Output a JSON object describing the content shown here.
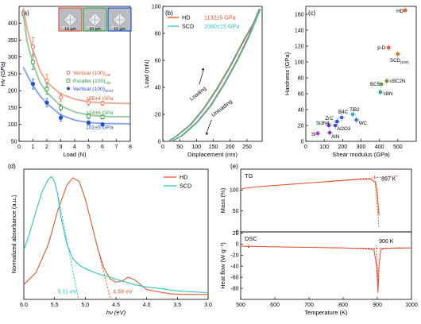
{
  "colors": {
    "hd": "#e4572e",
    "scd": "#2cc7b8",
    "vertical": "#e4572e",
    "parallel": "#2f9e44",
    "scd_vertical": "#1d4fd8",
    "axis": "#000000",
    "dashed": "#c0392b"
  },
  "chart_data": [
    {
      "panel": "(a)",
      "type": "scatter",
      "xlabel": "Load (N)",
      "ylabel": "Hv (GPa)",
      "xlim": [
        0,
        8
      ],
      "ylim": [
        50,
        450
      ],
      "xticks": [
        0,
        1,
        2,
        3,
        4,
        5,
        6,
        7,
        8
      ],
      "yticks": [
        50,
        100,
        150,
        200,
        250,
        300,
        350,
        400
      ],
      "series": [
        {
          "name": "Vertical (100)",
          "sub": "HD",
          "marker": "open-circle",
          "color": "#e4572e",
          "x": [
            1,
            2,
            3,
            5,
            6
          ],
          "y": [
            330,
            230,
            180,
            165,
            163
          ],
          "err": [
            28,
            18,
            12,
            8,
            6
          ]
        },
        {
          "name": "Parallel (100)",
          "sub": "HD",
          "marker": "open-square",
          "color": "#2f9e44",
          "x": [
            1,
            2,
            3,
            5,
            6
          ],
          "y": [
            285,
            205,
            150,
            125,
            122
          ],
          "err": [
            22,
            16,
            10,
            8,
            6
          ]
        },
        {
          "name": "Vertical (100)",
          "sub": "SCD",
          "marker": "filled-circle",
          "color": "#1d4fd8",
          "x": [
            1,
            2,
            3,
            5,
            6
          ],
          "y": [
            220,
            165,
            120,
            105,
            100
          ],
          "err": [
            15,
            12,
            10,
            6,
            5
          ]
        }
      ],
      "fits": [
        {
          "color": "#e4572e",
          "points": [
            [
              0.3,
              445
            ],
            [
              0.6,
              380
            ],
            [
              1,
              320
            ],
            [
              1.5,
              260
            ],
            [
              2,
              225
            ],
            [
              3,
              190
            ],
            [
              4,
              175
            ],
            [
              5,
              167
            ],
            [
              6,
              164
            ],
            [
              8,
              162
            ]
          ]
        },
        {
          "color": "#2f9e44",
          "points": [
            [
              0.3,
              425
            ],
            [
              0.6,
              340
            ],
            [
              1,
              280
            ],
            [
              1.5,
              225
            ],
            [
              2,
              195
            ],
            [
              3,
              155
            ],
            [
              4,
              137
            ],
            [
              5,
              128
            ],
            [
              6,
              124
            ],
            [
              8,
              123
            ]
          ]
        },
        {
          "color": "#1d4fd8",
          "points": [
            [
              0.3,
              270
            ],
            [
              0.6,
              245
            ],
            [
              1,
              215
            ],
            [
              1.5,
              185
            ],
            [
              2,
              162
            ],
            [
              3,
              128
            ],
            [
              4,
              113
            ],
            [
              5,
              106
            ],
            [
              6,
              103
            ],
            [
              8,
              102
            ]
          ]
        }
      ],
      "annotations": [
        {
          "text": "165±4 GPa",
          "color": "#e4572e",
          "x": 4.8,
          "y": 172
        },
        {
          "text": "124±6 GPa",
          "color": "#2f9e44",
          "x": 4.8,
          "y": 130
        },
        {
          "text": "102±5 GPa",
          "color": "#1d4fd8",
          "x": 4.8,
          "y": 86
        }
      ],
      "insets": [
        {
          "label": "10 μm",
          "border": "#e4572e"
        },
        {
          "label": "10 μm",
          "border": "#2f9e44"
        },
        {
          "label": "10 μm",
          "border": "#1d4fd8"
        }
      ]
    },
    {
      "panel": "(b)",
      "type": "line",
      "xlabel": "Displacement (nm)",
      "ylabel": "Load (mN)",
      "xlim": [
        0,
        295
      ],
      "ylim": [
        0,
        100
      ],
      "xticks": [
        0,
        50,
        100,
        150,
        200,
        250
      ],
      "yticks": [
        0,
        20,
        40,
        60,
        80,
        100
      ],
      "series": [
        {
          "name": "HD",
          "value": "1132±5 GPa",
          "color": "#e4572e"
        },
        {
          "name": "SCD",
          "value": "1060±15 GPa",
          "color": "#2cc7b8"
        }
      ],
      "loading_points": [
        [
          15,
          0
        ],
        [
          40,
          4
        ],
        [
          80,
          12
        ],
        [
          120,
          24
        ],
        [
          160,
          39
        ],
        [
          200,
          56
        ],
        [
          240,
          75
        ],
        [
          270,
          88
        ],
        [
          286,
          98
        ]
      ],
      "unloading_points": [
        [
          24,
          0
        ],
        [
          55,
          4
        ],
        [
          100,
          14
        ],
        [
          140,
          26
        ],
        [
          180,
          42
        ],
        [
          220,
          60
        ],
        [
          255,
          78
        ],
        [
          278,
          92
        ],
        [
          288,
          98
        ]
      ],
      "labels": {
        "loading": "Loading",
        "unloading": "Unloading"
      }
    },
    {
      "panel": "(c)",
      "type": "scatter",
      "xlabel": "Shear modulus (GPa)",
      "ylabel": "Hardness (GPa)",
      "xlim": [
        0,
        600
      ],
      "ylim": [
        0,
        170
      ],
      "xticks": [
        0,
        100,
        200,
        300,
        400,
        500
      ],
      "yticks": [
        0,
        20,
        40,
        60,
        80,
        100,
        120,
        140,
        160
      ],
      "points": [
        {
          "label": "HD",
          "x": 540,
          "y": 165,
          "color": "#e4572e",
          "marker": "square"
        },
        {
          "label": "SCD",
          "sub": "(100)",
          "x": 500,
          "y": 110,
          "color": "#c57b25",
          "marker": "square"
        },
        {
          "label": "p-D",
          "x": 450,
          "y": 118,
          "color": "#e4572e",
          "marker": "square"
        },
        {
          "label": "cBC2N",
          "x": 440,
          "y": 76,
          "color": "#7b8a2a",
          "marker": "square"
        },
        {
          "label": "BC5",
          "x": 410,
          "y": 72,
          "color": "#5a9e3a",
          "marker": "square"
        },
        {
          "label": "cBN",
          "x": 405,
          "y": 62,
          "color": "#2a9e8a",
          "marker": "square"
        },
        {
          "label": "TiB2",
          "x": 255,
          "y": 34,
          "color": "#3aa0c8",
          "marker": "square"
        },
        {
          "label": "WC",
          "x": 275,
          "y": 27,
          "color": "#3a7ac8",
          "marker": "square"
        },
        {
          "label": "B4C",
          "x": 195,
          "y": 30,
          "color": "#2a5ad8",
          "marker": "square"
        },
        {
          "label": "ZrC",
          "x": 170,
          "y": 25,
          "color": "#1d4fd8",
          "marker": "square"
        },
        {
          "label": "Al2O3",
          "x": 160,
          "y": 20,
          "color": "#4a3ad8",
          "marker": "square"
        },
        {
          "label": "Si3N4",
          "x": 125,
          "y": 20,
          "color": "#6a3ad8",
          "marker": "square"
        },
        {
          "label": "AlN",
          "x": 130,
          "y": 11,
          "color": "#7a3ab8",
          "marker": "square"
        },
        {
          "label": "Si",
          "x": 65,
          "y": 10,
          "color": "#a03ab8",
          "marker": "square"
        }
      ]
    },
    {
      "panel": "(d)",
      "type": "line",
      "xlabel": "hν (eV)",
      "ylabel": "Normalized absorbance (a.u.)",
      "xlim": [
        6.0,
        3.0
      ],
      "xticks": [
        6.0,
        5.5,
        5.0,
        4.5,
        4.0,
        3.5,
        3.0
      ],
      "legend": [
        "HD",
        "SCD"
      ],
      "series": [
        {
          "name": "HD",
          "color": "#e4572e",
          "x": [
            6.0,
            5.8,
            5.6,
            5.45,
            5.3,
            5.2,
            5.1,
            5.0,
            4.9,
            4.8,
            4.7,
            4.6,
            4.5,
            4.4,
            4.3,
            4.2,
            4.1,
            4.0,
            3.8,
            3.6,
            3.4,
            3.2,
            3.0
          ],
          "y": [
            0.12,
            0.22,
            0.45,
            0.72,
            0.93,
            0.99,
            0.96,
            0.82,
            0.62,
            0.42,
            0.26,
            0.17,
            0.14,
            0.15,
            0.18,
            0.16,
            0.12,
            0.08,
            0.06,
            0.045,
            0.04,
            0.04,
            0.04
          ]
        },
        {
          "name": "SCD",
          "color": "#2cc7b8",
          "x": [
            6.0,
            5.9,
            5.8,
            5.7,
            5.6,
            5.55,
            5.5,
            5.45,
            5.4,
            5.3,
            5.2,
            5.1,
            5.0,
            4.8,
            4.6,
            4.4,
            4.2,
            4.0,
            3.8,
            3.6,
            3.4,
            3.2,
            3.0
          ],
          "y": [
            0.4,
            0.55,
            0.72,
            0.88,
            0.98,
            1.0,
            0.96,
            0.86,
            0.68,
            0.45,
            0.33,
            0.28,
            0.25,
            0.21,
            0.18,
            0.15,
            0.12,
            0.1,
            0.09,
            0.075,
            0.065,
            0.06,
            0.055
          ]
        }
      ],
      "tangents": [
        {
          "color": "#2cc7b8",
          "from": [
            5.45,
            0.86
          ],
          "to": [
            5.11,
            0.0
          ],
          "label": "5.11 eV"
        },
        {
          "color": "#e4572e",
          "from": [
            4.9,
            0.62
          ],
          "to": [
            4.59,
            0.0
          ],
          "label": "4.59 eV"
        }
      ]
    },
    {
      "panel": "(e)",
      "type": "line",
      "xlabel": "Temperature (K)",
      "xlim": [
        500,
        1000
      ],
      "xticks": [
        500,
        600,
        700,
        800,
        900,
        1000
      ],
      "top": {
        "label": "TG",
        "ylabel": "Mass (%)",
        "ylim": [
          0,
          150
        ],
        "yticks": [
          0,
          50,
          100
        ],
        "x": [
          500,
          550,
          600,
          650,
          700,
          750,
          800,
          850,
          880,
          895,
          900,
          902,
          905
        ],
        "y": [
          103,
          108,
          111,
          114,
          117,
          120,
          123,
          126,
          126,
          118,
          95,
          70,
          40
        ],
        "marker_label": "897 K"
      },
      "bottom": {
        "label": "DSC",
        "ylabel": "Heat flow (W·g⁻¹)",
        "ylim": [
          -100,
          22
        ],
        "yticks": [
          -80,
          -60,
          -40,
          -20,
          0,
          20
        ],
        "x": [
          500,
          600,
          700,
          800,
          860,
          890,
          898,
          902,
          905,
          910,
          920,
          960,
          1000
        ],
        "y": [
          -4,
          -5,
          -6,
          -7,
          -8,
          -10,
          -40,
          -88,
          -40,
          -10,
          -8,
          -7,
          -7
        ],
        "marker_label": "900 K",
        "arrow": "↓"
      }
    }
  ]
}
